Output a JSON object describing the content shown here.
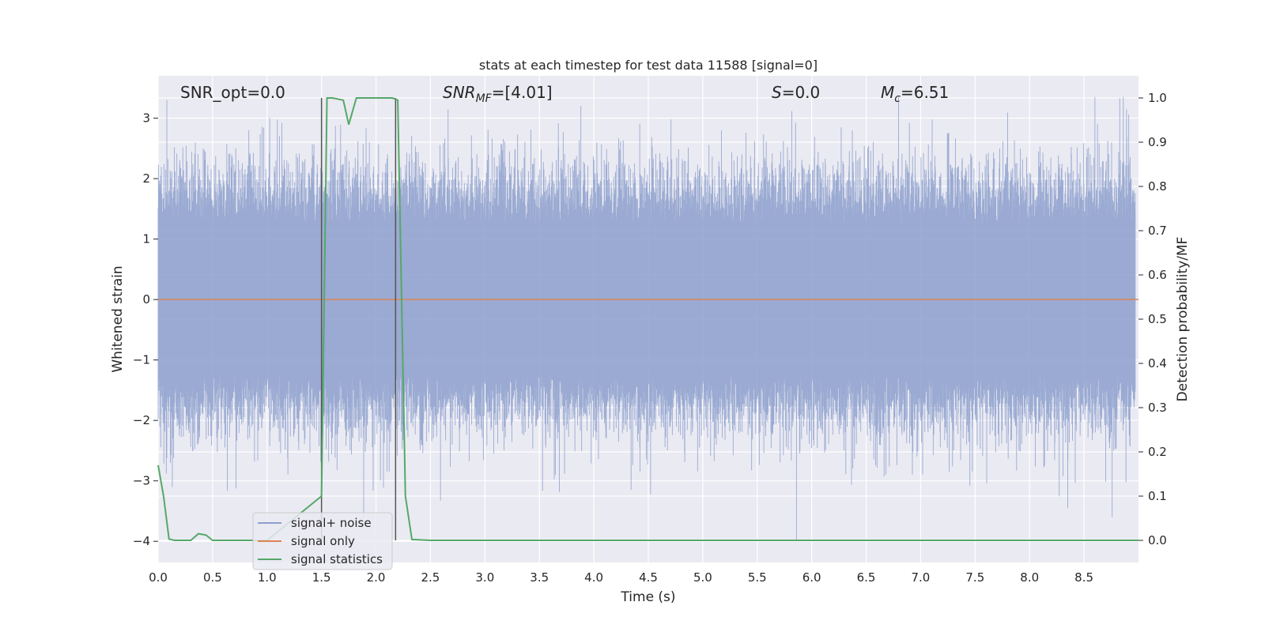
{
  "chart_data": {
    "type": "line",
    "title": "stats at each timestep for test data 11588 [signal=0]",
    "xlabel": "Time (s)",
    "ylabel": "Whitened strain",
    "y2label": "Detection probability/MF",
    "xlim": [
      0.0,
      9.0
    ],
    "ylim": [
      -4.35,
      3.7
    ],
    "y2lim": [
      -0.05,
      1.05
    ],
    "xticks": [
      "0.0",
      "0.5",
      "1.0",
      "1.5",
      "2.0",
      "2.5",
      "3.0",
      "3.5",
      "4.0",
      "4.5",
      "5.0",
      "5.5",
      "6.0",
      "6.5",
      "7.0",
      "7.5",
      "8.0",
      "8.5"
    ],
    "yticks": [
      "−4",
      "−3",
      "−2",
      "−1",
      "0",
      "1",
      "2",
      "3"
    ],
    "y2ticks": [
      "0.0",
      "0.1",
      "0.2",
      "0.3",
      "0.4",
      "0.5",
      "0.6",
      "0.7",
      "0.8",
      "0.9",
      "1.0"
    ],
    "grid": true,
    "legend_position": "lower-left",
    "annotations": {
      "snr_opt": "SNR_opt=0.0",
      "snr_mf_sym": "SNR",
      "snr_mf_sub": "MF",
      "snr_mf_val": "=[4.01]",
      "s_sym": "S",
      "s_val": "=0.0",
      "mc_sym": "M",
      "mc_sub": "c",
      "mc_val": "=6.51"
    },
    "vertical_markers": [
      1.5,
      2.18
    ],
    "series": [
      {
        "name": "signal+ noise",
        "color": "#8c9fcd",
        "style": "dense noise, approx. symmetric about 0, amplitude mostly within ±2, peaks to ~3.3 and ~−4.0"
      },
      {
        "name": "signal only",
        "color": "#dd8452",
        "x": [
          0.0,
          9.0
        ],
        "y": [
          0.0,
          0.0
        ]
      },
      {
        "name": "signal statistics",
        "color": "#55a868",
        "axis": "right",
        "x": [
          0.0,
          0.05,
          0.1,
          0.15,
          0.3,
          0.37,
          0.44,
          0.5,
          1.0,
          1.5,
          1.55,
          1.6,
          1.7,
          1.75,
          1.82,
          2.0,
          2.15,
          2.2,
          2.27,
          2.33,
          2.5,
          9.0
        ],
        "y": [
          0.17,
          0.1,
          0.003,
          0.0,
          0.0,
          0.015,
          0.012,
          0.0,
          0.0,
          0.1,
          1.0,
          1.0,
          0.995,
          0.94,
          1.0,
          1.0,
          1.0,
          0.995,
          0.1,
          0.002,
          0.0,
          0.0
        ]
      }
    ]
  }
}
